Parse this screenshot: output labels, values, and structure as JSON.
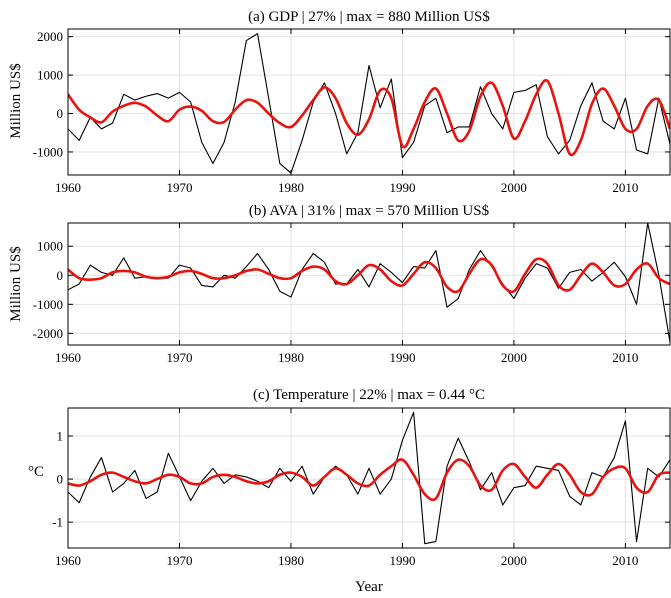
{
  "chart_data": [
    {
      "type": "line",
      "title": "(a) GDP | 27% | max = 880 Million US$",
      "ylabel": "Million US$",
      "xlabel": "",
      "xlim": [
        1960,
        2014
      ],
      "ylim": [
        -1600,
        2200
      ],
      "xticks": [
        1960,
        1970,
        1980,
        1990,
        2000,
        2010
      ],
      "yticks": [
        -1000,
        0,
        1000,
        2000
      ],
      "ytick_labels": [
        "-1000",
        "0",
        "1000",
        "2000"
      ],
      "grid": true,
      "series": [
        {
          "color": "#000000",
          "x": [
            1960,
            1961,
            1962,
            1963,
            1964,
            1965,
            1966,
            1967,
            1968,
            1969,
            1970,
            1971,
            1972,
            1973,
            1974,
            1975,
            1976,
            1977,
            1978,
            1979,
            1980,
            1981,
            1982,
            1983,
            1984,
            1985,
            1986,
            1987,
            1988,
            1989,
            1990,
            1991,
            1992,
            1993,
            1994,
            1995,
            1996,
            1997,
            1998,
            1999,
            2000,
            2001,
            2002,
            2003,
            2004,
            2005,
            2006,
            2007,
            2008,
            2009,
            2010,
            2011,
            2012,
            2013,
            2014
          ],
          "y": [
            -400,
            -700,
            -100,
            -400,
            -250,
            500,
            350,
            450,
            520,
            400,
            550,
            300,
            -750,
            -1300,
            -750,
            300,
            1900,
            2080,
            400,
            -1300,
            -1550,
            -700,
            300,
            800,
            0,
            -1050,
            -500,
            1250,
            150,
            900,
            -1150,
            -750,
            200,
            400,
            -500,
            -350,
            -350,
            700,
            0,
            -400,
            550,
            600,
            750,
            -600,
            -1050,
            -700,
            200,
            800,
            -200,
            -400,
            400,
            -950,
            -1050,
            400,
            -800
          ]
        },
        {
          "color": "#e8130f",
          "smooth": true,
          "x": [
            1960,
            1961,
            1962,
            1963,
            1964,
            1965,
            1966,
            1967,
            1968,
            1969,
            1970,
            1971,
            1972,
            1973,
            1974,
            1975,
            1976,
            1977,
            1978,
            1979,
            1980,
            1981,
            1982,
            1983,
            1984,
            1985,
            1986,
            1987,
            1988,
            1989,
            1990,
            1991,
            1992,
            1993,
            1994,
            1995,
            1996,
            1997,
            1998,
            1999,
            2000,
            2001,
            2002,
            2003,
            2004,
            2005,
            2006,
            2007,
            2008,
            2009,
            2010,
            2011,
            2012,
            2013,
            2014
          ],
          "y": [
            500,
            100,
            -100,
            -230,
            50,
            200,
            280,
            180,
            -50,
            -200,
            100,
            180,
            70,
            -200,
            -220,
            100,
            350,
            280,
            0,
            -250,
            -350,
            -50,
            350,
            680,
            400,
            -250,
            -550,
            -150,
            600,
            400,
            -850,
            -400,
            300,
            650,
            0,
            -700,
            -450,
            450,
            800,
            200,
            -650,
            -200,
            500,
            850,
            0,
            -1050,
            -700,
            250,
            650,
            200,
            -400,
            -400,
            200,
            350,
            -400
          ]
        }
      ]
    },
    {
      "type": "line",
      "title": "(b) AVA | 31% | max = 570 Million US$",
      "ylabel": "Million US$",
      "xlabel": "",
      "xlim": [
        1960,
        2014
      ],
      "ylim": [
        -2400,
        1800
      ],
      "xticks": [
        1960,
        1970,
        1980,
        1990,
        2000,
        2010
      ],
      "yticks": [
        -2000,
        -1000,
        0,
        1000
      ],
      "ytick_labels": [
        "-2000",
        "-1000",
        "0",
        "1000"
      ],
      "grid": true,
      "series": [
        {
          "color": "#000000",
          "x": [
            1960,
            1961,
            1962,
            1963,
            1964,
            1965,
            1966,
            1967,
            1968,
            1969,
            1970,
            1971,
            1972,
            1973,
            1974,
            1975,
            1976,
            1977,
            1978,
            1979,
            1980,
            1981,
            1982,
            1983,
            1984,
            1985,
            1986,
            1987,
            1988,
            1989,
            1990,
            1991,
            1992,
            1993,
            1994,
            1995,
            1996,
            1997,
            1998,
            1999,
            2000,
            2001,
            2002,
            2003,
            2004,
            2005,
            2006,
            2007,
            2008,
            2009,
            2010,
            2011,
            2012,
            2013,
            2014
          ],
          "y": [
            -500,
            -300,
            350,
            100,
            0,
            600,
            -100,
            -50,
            -100,
            -100,
            350,
            250,
            -350,
            -400,
            0,
            -100,
            300,
            750,
            200,
            -550,
            -750,
            200,
            750,
            450,
            -300,
            -300,
            200,
            -400,
            400,
            100,
            -250,
            300,
            250,
            850,
            -1100,
            -800,
            200,
            850,
            300,
            -300,
            -800,
            -100,
            400,
            250,
            -450,
            100,
            200,
            -200,
            100,
            450,
            -50,
            -1000,
            1800,
            0,
            -2300
          ]
        },
        {
          "color": "#e8130f",
          "smooth": true,
          "x": [
            1960,
            1961,
            1962,
            1963,
            1964,
            1965,
            1966,
            1967,
            1968,
            1969,
            1970,
            1971,
            1972,
            1973,
            1974,
            1975,
            1976,
            1977,
            1978,
            1979,
            1980,
            1981,
            1982,
            1983,
            1984,
            1985,
            1986,
            1987,
            1988,
            1989,
            1990,
            1991,
            1992,
            1993,
            1994,
            1995,
            1996,
            1997,
            1998,
            1999,
            2000,
            2001,
            2002,
            2003,
            2004,
            2005,
            2006,
            2007,
            2008,
            2009,
            2010,
            2011,
            2012,
            2013,
            2014
          ],
          "y": [
            200,
            -100,
            -150,
            -100,
            100,
            150,
            100,
            -50,
            -100,
            -50,
            100,
            150,
            50,
            -100,
            -100,
            0,
            150,
            200,
            50,
            -100,
            -100,
            150,
            300,
            200,
            -200,
            -300,
            0,
            350,
            200,
            -200,
            -350,
            50,
            450,
            250,
            -400,
            -550,
            50,
            550,
            350,
            -350,
            -550,
            50,
            550,
            400,
            -350,
            -500,
            0,
            400,
            100,
            -350,
            -300,
            200,
            400,
            -100,
            -300
          ]
        }
      ]
    },
    {
      "type": "line",
      "title": "(c) Temperature | 22% | max = 0.44 °C",
      "ylabel": "°C",
      "xlabel": "Year",
      "xlim": [
        1960,
        2014
      ],
      "ylim": [
        -1.6,
        1.65
      ],
      "xticks": [
        1960,
        1970,
        1980,
        1990,
        2000,
        2010
      ],
      "yticks": [
        -1,
        0,
        1
      ],
      "ytick_labels": [
        "-1",
        "0",
        "1"
      ],
      "grid": true,
      "series": [
        {
          "color": "#000000",
          "x": [
            1960,
            1961,
            1962,
            1963,
            1964,
            1965,
            1966,
            1967,
            1968,
            1969,
            1970,
            1971,
            1972,
            1973,
            1974,
            1975,
            1976,
            1977,
            1978,
            1979,
            1980,
            1981,
            1982,
            1983,
            1984,
            1985,
            1986,
            1987,
            1988,
            1989,
            1990,
            1991,
            1992,
            1993,
            1994,
            1995,
            1996,
            1997,
            1998,
            1999,
            2000,
            2001,
            2002,
            2003,
            2004,
            2005,
            2006,
            2007,
            2008,
            2009,
            2010,
            2011,
            2012,
            2013,
            2014
          ],
          "y": [
            -0.3,
            -0.55,
            0.05,
            0.5,
            -0.3,
            -0.1,
            0.2,
            -0.45,
            -0.3,
            0.6,
            0.05,
            -0.5,
            -0.05,
            0.25,
            -0.1,
            0.1,
            0.05,
            -0.05,
            -0.2,
            0.25,
            -0.05,
            0.3,
            -0.35,
            0.05,
            0.3,
            0.1,
            -0.35,
            0.25,
            -0.35,
            0.0,
            0.9,
            1.55,
            -1.5,
            -1.45,
            0.3,
            0.95,
            0.4,
            -0.25,
            0.15,
            -0.6,
            -0.2,
            -0.15,
            0.3,
            0.25,
            0.2,
            -0.4,
            -0.6,
            0.15,
            0.05,
            0.5,
            1.35,
            -1.45,
            0.25,
            0.05,
            0.45
          ]
        },
        {
          "color": "#e8130f",
          "smooth": true,
          "x": [
            1960,
            1961,
            1962,
            1963,
            1964,
            1965,
            1966,
            1967,
            1968,
            1969,
            1970,
            1971,
            1972,
            1973,
            1974,
            1975,
            1976,
            1977,
            1978,
            1979,
            1980,
            1981,
            1982,
            1983,
            1984,
            1985,
            1986,
            1987,
            1988,
            1989,
            1990,
            1991,
            1992,
            1993,
            1994,
            1995,
            1996,
            1997,
            1998,
            1999,
            2000,
            2001,
            2002,
            2003,
            2004,
            2005,
            2006,
            2007,
            2008,
            2009,
            2010,
            2011,
            2012,
            2013,
            2014
          ],
          "y": [
            -0.1,
            -0.15,
            -0.05,
            0.1,
            0.15,
            0.05,
            -0.05,
            -0.1,
            0.0,
            0.1,
            0.05,
            -0.1,
            -0.1,
            0.05,
            0.1,
            0.05,
            -0.05,
            -0.1,
            -0.05,
            0.1,
            0.15,
            0.05,
            -0.15,
            0.05,
            0.25,
            0.1,
            -0.1,
            -0.15,
            0.1,
            0.3,
            0.45,
            0.1,
            -0.35,
            -0.45,
            0.15,
            0.45,
            0.3,
            -0.15,
            -0.25,
            0.2,
            0.35,
            0.05,
            -0.2,
            0.1,
            0.35,
            0.1,
            -0.3,
            -0.35,
            0.05,
            0.25,
            0.25,
            -0.2,
            -0.3,
            0.1,
            0.15
          ]
        }
      ]
    }
  ]
}
